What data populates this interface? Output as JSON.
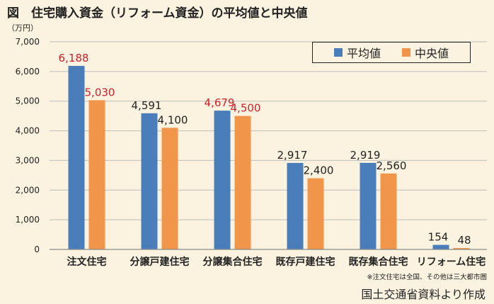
{
  "title": "図　住宅購入資金（リフォーム資金）の平均値と中央値",
  "unit": "（万円）",
  "note": "※注文住宅は全国、その他は三大都市圏",
  "source": "国土交通省資料より作成",
  "colors": {
    "average": "#4a7ebb",
    "median": "#f0954a",
    "highlight_label": "#d0202a",
    "label": "#222222",
    "grid": "#bdbdbd"
  },
  "chart_data": {
    "type": "bar",
    "categories": [
      "注文住宅",
      "分譲戸建住宅",
      "分譲集合住宅",
      "既存戸建住宅",
      "既存集合住宅",
      "リフォーム住宅"
    ],
    "series": [
      {
        "name": "平均値",
        "values": [
          6188,
          4591,
          4679,
          2917,
          2919,
          154
        ],
        "labels": [
          "6,188",
          "4,591",
          "4,679",
          "2,917",
          "2,919",
          "154"
        ],
        "highlight": [
          true,
          false,
          true,
          false,
          false,
          false
        ]
      },
      {
        "name": "中央値",
        "values": [
          5030,
          4100,
          4500,
          2400,
          2560,
          48
        ],
        "labels": [
          "5,030",
          "4,100",
          "4,500",
          "2,400",
          "2,560",
          "48"
        ],
        "highlight": [
          true,
          false,
          true,
          false,
          false,
          false
        ]
      }
    ],
    "ylabel": "（万円）",
    "ylim": [
      0,
      7000
    ],
    "yticks": [
      0,
      1000,
      2000,
      3000,
      4000,
      5000,
      6000,
      7000
    ],
    "ytick_labels": [
      "0",
      "1,000",
      "2,000",
      "3,000",
      "4,000",
      "5,000",
      "6,000",
      "7,000"
    ],
    "grid": true,
    "legend_position": "top-right"
  }
}
